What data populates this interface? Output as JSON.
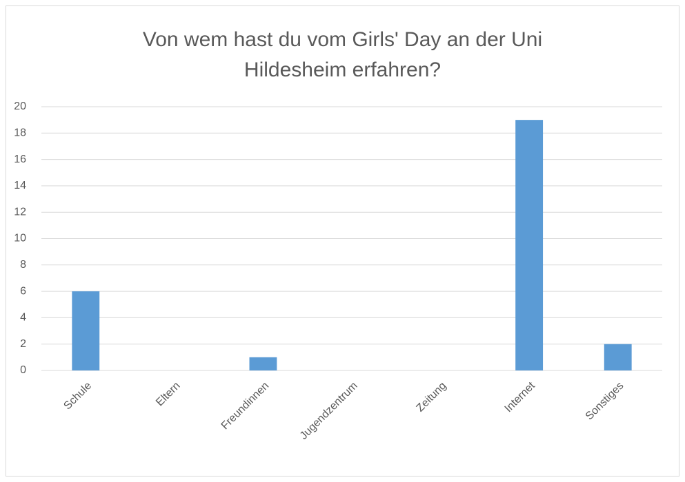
{
  "chart_data": {
    "type": "bar",
    "title": "Von wem hast du vom Girls' Day an der Uni Hildesheim erfahren?",
    "categories": [
      "Schule",
      "Eltern",
      "Freundinnen",
      "Jugendzentrum",
      "Zeitung",
      "Internet",
      "Sonstiges"
    ],
    "values": [
      6,
      0,
      1,
      0,
      0,
      19,
      2
    ],
    "color": "#5b9bd5",
    "ylim": [
      0,
      20
    ],
    "yticks": [
      0,
      2,
      4,
      6,
      8,
      10,
      12,
      14,
      16,
      18,
      20
    ],
    "grid": true
  }
}
